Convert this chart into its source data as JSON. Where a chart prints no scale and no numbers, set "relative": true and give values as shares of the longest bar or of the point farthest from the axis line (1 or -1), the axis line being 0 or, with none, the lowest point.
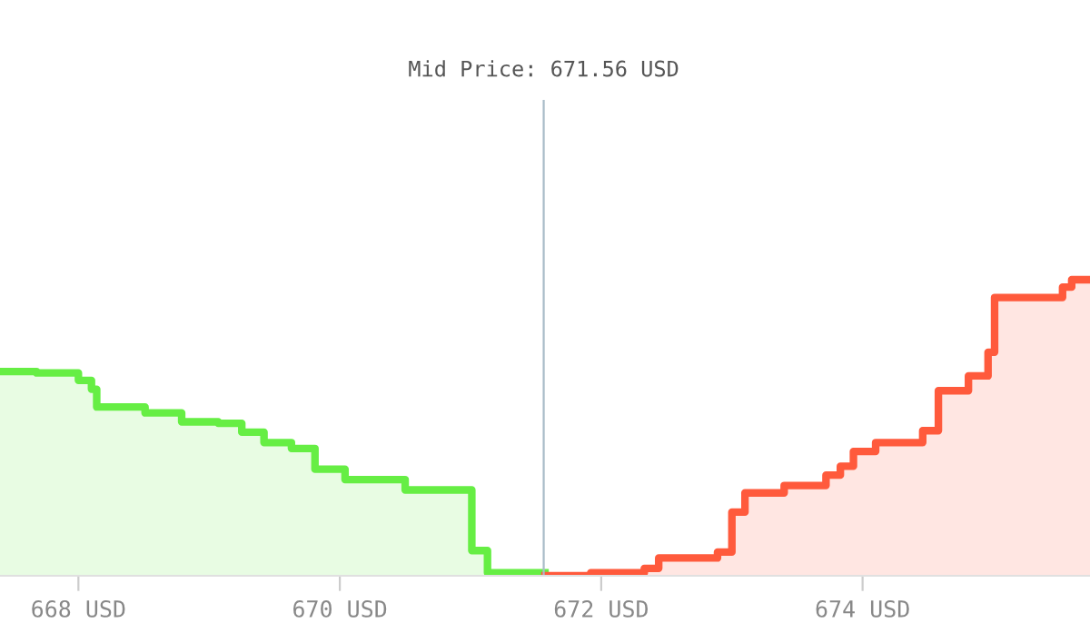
{
  "chart_data": {
    "type": "area",
    "relative": true,
    "xlim": [
      667.4,
      675.74
    ],
    "xticks": [
      {
        "value": 668,
        "label": "668 USD"
      },
      {
        "value": 670,
        "label": "670 USD"
      },
      {
        "value": 672,
        "label": "672 USD"
      },
      {
        "value": 674,
        "label": "674 USD"
      }
    ],
    "series": [
      {
        "color": "#66ee44",
        "x": [
          667.4,
          667.68,
          667.68,
          668.0,
          668.0,
          668.1,
          668.1,
          668.14,
          668.14,
          668.51,
          668.51,
          668.79,
          668.79,
          669.07,
          669.07,
          669.25,
          669.25,
          669.42,
          669.42,
          669.63,
          669.63,
          669.81,
          669.81,
          670.04,
          670.04,
          670.5,
          670.5,
          671.01,
          671.01,
          671.13,
          671.13,
          671.57
        ],
        "values": [
          0.69,
          0.69,
          0.685,
          0.685,
          0.66,
          0.66,
          0.63,
          0.63,
          0.57,
          0.57,
          0.55,
          0.55,
          0.52,
          0.52,
          0.515,
          0.515,
          0.485,
          0.485,
          0.45,
          0.45,
          0.43,
          0.43,
          0.36,
          0.36,
          0.325,
          0.325,
          0.29,
          0.29,
          0.085,
          0.085,
          0.01,
          0.01
        ]
      },
      {
        "color": "#ff5a3c",
        "x": [
          671.57,
          671.92,
          671.92,
          672.33,
          672.33,
          672.44,
          672.44,
          672.89,
          672.89,
          673.0,
          673.0,
          673.1,
          673.1,
          673.4,
          673.4,
          673.72,
          673.72,
          673.83,
          673.83,
          673.93,
          673.93,
          674.1,
          674.1,
          674.46,
          674.46,
          674.58,
          674.58,
          674.81,
          674.81,
          674.96,
          674.96,
          675.01,
          675.01,
          675.53,
          675.53,
          675.6,
          675.6,
          675.74
        ],
        "values": [
          0.0,
          0.0,
          0.01,
          0.01,
          0.025,
          0.025,
          0.06,
          0.06,
          0.08,
          0.08,
          0.215,
          0.215,
          0.28,
          0.28,
          0.305,
          0.305,
          0.34,
          0.34,
          0.37,
          0.37,
          0.42,
          0.42,
          0.45,
          0.45,
          0.49,
          0.49,
          0.625,
          0.625,
          0.675,
          0.675,
          0.755,
          0.755,
          0.94,
          0.94,
          0.975,
          0.975,
          1.0,
          1.0
        ]
      }
    ],
    "ref_lines": [
      {
        "axis": "x",
        "value": 671.56,
        "label": "Mid Price: 671.56 USD",
        "color": "#a9bcc8"
      }
    ],
    "grid": false,
    "legend": false
  }
}
